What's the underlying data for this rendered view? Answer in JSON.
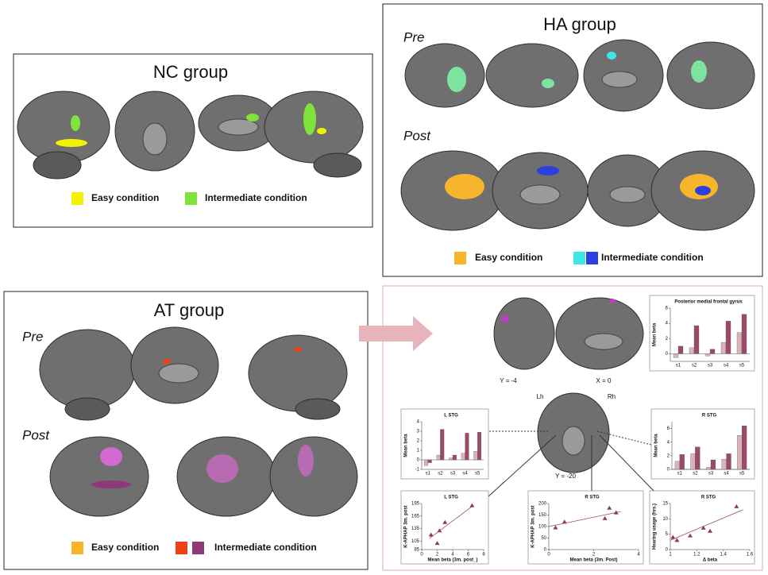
{
  "nc_panel": {
    "title": "NC group",
    "legend": [
      {
        "label": "Easy condition",
        "colors": [
          "#f2f200"
        ]
      },
      {
        "label": "Intermediate condition",
        "colors": [
          "#7ee33a"
        ]
      }
    ]
  },
  "ha_panel": {
    "title": "HA group",
    "rows": [
      "Pre",
      "Post"
    ],
    "legend": [
      {
        "label": "Easy condition",
        "colors": [
          "#f7b52c"
        ]
      },
      {
        "label": "Intermediate condition",
        "colors": [
          "#3ee6e6",
          "#2b3ee0"
        ]
      }
    ]
  },
  "at_panel": {
    "title": "AT group",
    "rows": [
      "Pre",
      "Post"
    ],
    "legend": [
      {
        "label": "Easy condition",
        "colors": [
          "#f7b52c"
        ]
      },
      {
        "label": "Intermediate condition",
        "colors": [
          "#f0401a",
          "#8e3a78"
        ]
      }
    ]
  },
  "results_panel": {
    "slice_labels": [
      "Y = -4",
      "X = 0",
      "Lh",
      "Rh",
      "Y = -20"
    ],
    "charts": [
      {
        "type": "bar",
        "title": "Posterior medial frontal gyrus",
        "y_label": "Mean beta",
        "categories": [
          "s1",
          "s2",
          "s3",
          "s4",
          "s5"
        ],
        "series": [
          {
            "color": "#d9b3b8",
            "values": [
              -0.5,
              0.8,
              -0.3,
              1.5,
              2.8
            ]
          },
          {
            "color": "#9b4a6a",
            "values": [
              1,
              3.7,
              0.6,
              4.3,
              5.2
            ]
          }
        ],
        "ylim": [
          -1,
          6
        ],
        "yticks": [
          0,
          2,
          4,
          6
        ]
      },
      {
        "type": "bar",
        "title": "L STG",
        "y_label": "Mean beta",
        "categories": [
          "s1",
          "s2",
          "s3",
          "s4",
          "s5"
        ],
        "series": [
          {
            "color": "#d9b3b8",
            "values": [
              -0.6,
              0.5,
              0.2,
              0.7,
              0.9
            ]
          },
          {
            "color": "#9b4a6a",
            "values": [
              -0.3,
              3.2,
              0.5,
              2.8,
              2.9
            ]
          }
        ],
        "ylim": [
          -1,
          4
        ],
        "yticks": [
          -1,
          0,
          1,
          2,
          3,
          4
        ]
      },
      {
        "type": "bar",
        "title": "R STG",
        "y_label": "Mean beta",
        "categories": [
          "s1",
          "s2",
          "s3",
          "s4",
          "s5"
        ],
        "series": [
          {
            "color": "#d9b3b8",
            "values": [
              1.2,
              2.3,
              0.3,
              1.5,
              5
            ]
          },
          {
            "color": "#9b4a6a",
            "values": [
              2.2,
              3.3,
              1.4,
              2.3,
              6.4
            ]
          }
        ],
        "ylim": [
          0,
          7
        ],
        "yticks": [
          0,
          2,
          4,
          6
        ]
      },
      {
        "type": "scatter",
        "title": "L STG",
        "x_label": "Mean beta (3m. post_)",
        "y_label": "K-APHAP 3m. post",
        "x": [
          1.2,
          2,
          2.3,
          3,
          6.5
        ],
        "y": [
          120,
          100,
          130,
          150,
          190
        ],
        "color": "#8b3a5a",
        "fit": {
          "x": [
            1,
            6.5
          ],
          "y": [
            112,
            188
          ]
        },
        "xlim": [
          0,
          8
        ],
        "xticks": [
          0,
          2,
          4,
          6,
          8
        ],
        "ylim": [
          85,
          195
        ],
        "yticks": [
          85,
          105,
          135,
          165,
          195
        ]
      },
      {
        "type": "scatter",
        "title": "R STG",
        "x_label": "Mean beta (3m. Post)",
        "y_label": "K-APHAP 3m. post",
        "x": [
          0.3,
          0.7,
          2.5,
          2.7,
          3
        ],
        "y": [
          95,
          120,
          135,
          180,
          160
        ],
        "color": "#8b3a5a",
        "fit": {
          "x": [
            0,
            3.2
          ],
          "y": [
            100,
            165
          ]
        },
        "xlim": [
          0,
          4
        ],
        "xticks": [
          0,
          2,
          4
        ],
        "ylim": [
          0,
          200
        ],
        "yticks": [
          0,
          50,
          100,
          150,
          200
        ]
      },
      {
        "type": "scatter",
        "title": "R STG",
        "x_label": "Δ beta",
        "y_label": "Hearing usage (hrs.)",
        "x": [
          1.02,
          1.05,
          1.15,
          1.25,
          1.3,
          1.5
        ],
        "y": [
          4,
          3,
          4.5,
          7,
          6,
          14
        ],
        "color": "#8b3a5a",
        "fit": {
          "x": [
            1,
            1.55
          ],
          "y": [
            3,
            13
          ]
        },
        "xlim": [
          1,
          1.6
        ],
        "xticks": [
          1,
          1.2,
          1.4,
          1.6
        ],
        "ylim": [
          0,
          15
        ],
        "yticks": [
          0,
          5,
          10,
          15
        ]
      }
    ]
  }
}
